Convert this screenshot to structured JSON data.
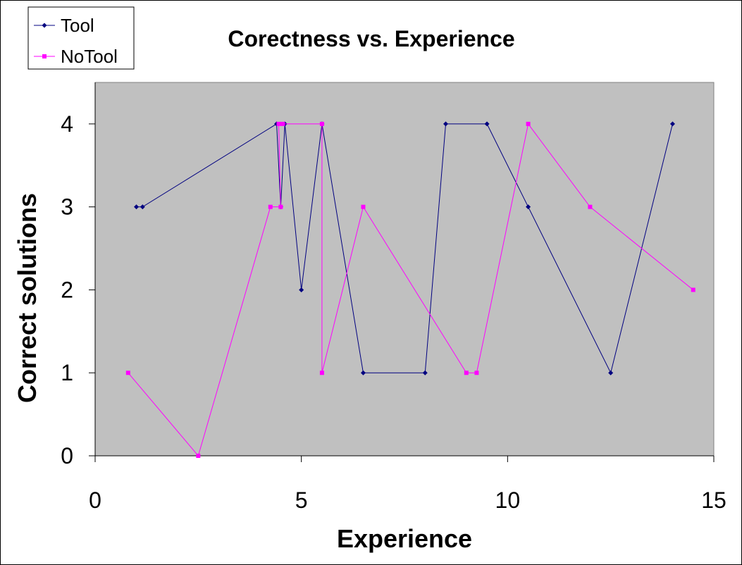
{
  "chart_data": {
    "type": "line",
    "title": "Corectness vs. Experience",
    "xlabel": "Experience",
    "ylabel": "Correct solutions",
    "xlim": [
      0,
      15
    ],
    "ylim": [
      0,
      4.5
    ],
    "x_ticks": [
      0,
      5,
      10,
      15
    ],
    "y_ticks": [
      0,
      1,
      2,
      3,
      4
    ],
    "grid": false,
    "plot_background": "#c0c0c0",
    "legend_placement": "top-left",
    "series": [
      {
        "name": "Tool",
        "color": "#000080",
        "marker": "diamond",
        "points": [
          [
            1.0,
            3
          ],
          [
            1.15,
            3
          ],
          [
            4.4,
            4
          ],
          [
            4.5,
            3
          ],
          [
            4.6,
            4
          ],
          [
            5.0,
            2
          ],
          [
            5.5,
            4
          ],
          [
            6.5,
            1
          ],
          [
            8.0,
            1
          ],
          [
            8.5,
            4
          ],
          [
            9.5,
            4
          ],
          [
            10.5,
            3
          ],
          [
            12.5,
            1
          ],
          [
            14.0,
            4
          ]
        ]
      },
      {
        "name": "NoTool",
        "color": "#ff00ff",
        "marker": "square",
        "points": [
          [
            0.8,
            1
          ],
          [
            2.5,
            0
          ],
          [
            4.25,
            3
          ],
          [
            4.5,
            3
          ],
          [
            4.45,
            4
          ],
          [
            4.55,
            4
          ],
          [
            5.5,
            4
          ],
          [
            5.5,
            1
          ],
          [
            6.5,
            3
          ],
          [
            9.0,
            1
          ],
          [
            9.25,
            1
          ],
          [
            10.5,
            4
          ],
          [
            12.0,
            3
          ],
          [
            14.5,
            2
          ]
        ]
      }
    ]
  }
}
